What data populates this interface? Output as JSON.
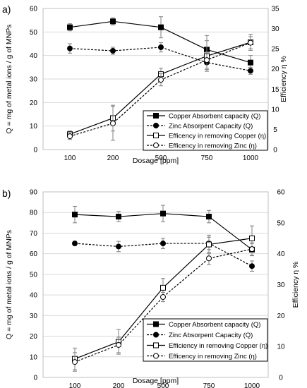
{
  "chart_data": [
    {
      "type": "line",
      "panel_label": "a)",
      "categories": [
        "100",
        "200",
        "500",
        "750",
        "1000"
      ],
      "xlabel": "Dosage [ppm]",
      "ylabel": "Q = mg of metal ions / g of MNPs",
      "y2label": "Efficiency η %",
      "ylim": [
        0,
        60
      ],
      "yticks": [
        "0",
        "10",
        "20",
        "30",
        "40",
        "50",
        "60"
      ],
      "y2lim": [
        0,
        35
      ],
      "y2ticks": [
        "0",
        "5",
        "10",
        "15",
        "20",
        "25",
        "30",
        "35"
      ],
      "grid": true,
      "legend_position": "bottom-right",
      "series": [
        {
          "name": "Copper Absorbent capacity (Q)",
          "axis": "left",
          "marker": "square-filled",
          "dash": false,
          "values": [
            52,
            54.5,
            52,
            42.5,
            37
          ],
          "err": [
            1.5,
            1.5,
            4.5,
            6,
            3
          ]
        },
        {
          "name": "Zinc Absorpent Capacity (Q)",
          "axis": "left",
          "marker": "circle-filled",
          "dash": true,
          "values": [
            43,
            42,
            43.5,
            37,
            33.5
          ],
          "err": [
            2,
            1.5,
            2,
            3,
            1.5
          ]
        },
        {
          "name": "Efficency  in removing Copper (η)",
          "axis": "right",
          "marker": "square-open",
          "dash": false,
          "values": [
            3.8,
            7.8,
            18.7,
            23.2,
            26.6
          ],
          "err": [
            0.8,
            3.2,
            1.5,
            3.8,
            2
          ]
        },
        {
          "name": "Efficency  in removing Zinc (η)",
          "axis": "right",
          "marker": "circle-open",
          "dash": true,
          "values": [
            3.3,
            6.5,
            17.3,
            22.2,
            26.5
          ],
          "err": [
            0.8,
            4.2,
            1.5,
            2,
            1.5
          ]
        }
      ]
    },
    {
      "type": "line",
      "panel_label": "b)",
      "categories": [
        "100",
        "200",
        "500",
        "750",
        "1000"
      ],
      "xlabel": "Dosage [ppm]",
      "ylabel": "Q = mg of metal ions / g of MNPs",
      "y2label": "Efficiency η %",
      "ylim": [
        0,
        90
      ],
      "yticks": [
        "0",
        "10",
        "20",
        "30",
        "40",
        "50",
        "60",
        "70",
        "80",
        "90"
      ],
      "y2lim": [
        0,
        60
      ],
      "y2ticks": [
        "0",
        "10",
        "20",
        "30",
        "40",
        "50",
        "60"
      ],
      "grid": true,
      "legend_position": "bottom-right",
      "series": [
        {
          "name": "Copper Absorbent capacity (Q)",
          "axis": "left",
          "marker": "square-filled",
          "dash": false,
          "values": [
            79,
            78,
            79.5,
            78,
            62
          ],
          "err": [
            4,
            2.5,
            4,
            3,
            3
          ]
        },
        {
          "name": "Zinc Absorpent Capacity (Q)",
          "axis": "left",
          "marker": "circle-filled",
          "dash": true,
          "values": [
            65,
            63.5,
            65,
            65,
            54
          ],
          "err": [
            1,
            2.5,
            2.5,
            3,
            2.5
          ]
        },
        {
          "name": "Efficiency  in removing Copper (η)",
          "axis": "right",
          "marker": "square-open",
          "dash": false,
          "values": [
            6,
            11.5,
            29,
            43,
            45
          ],
          "err": [
            3.5,
            4,
            3,
            3,
            4
          ]
        },
        {
          "name": "Efficency  in removing Zinc (η)",
          "axis": "right",
          "marker": "circle-open",
          "dash": true,
          "values": [
            5,
            10.5,
            26,
            38.5,
            41.5
          ],
          "err": [
            3,
            2.5,
            1.5,
            2,
            2
          ]
        }
      ]
    }
  ]
}
